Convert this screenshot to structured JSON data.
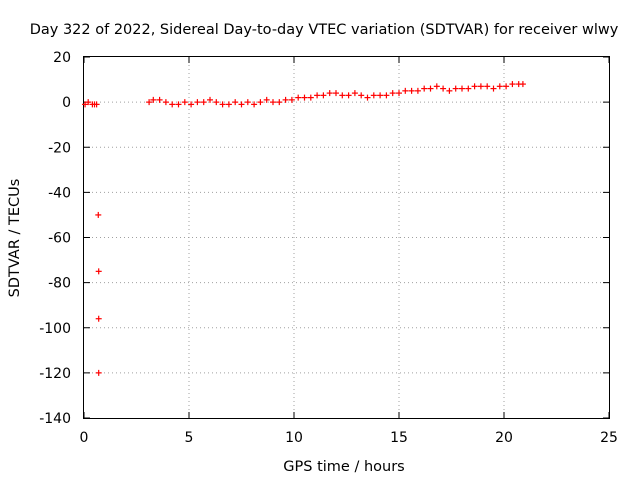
{
  "chart_data": {
    "type": "scatter",
    "title": "Day 322 of 2022, Sidereal Day-to-day VTEC variation (SDTVAR) for receiver wlwy",
    "xlabel": "GPS time / hours",
    "ylabel": "SDTVAR / TECUs",
    "xlim": [
      0,
      25
    ],
    "ylim": [
      -140,
      20
    ],
    "xticks": [
      0,
      5,
      10,
      15,
      20,
      25
    ],
    "yticks": [
      -140,
      -120,
      -100,
      -80,
      -60,
      -40,
      -20,
      0,
      20
    ],
    "grid": true,
    "marker": "+",
    "colors": {
      "series": "#ff0000",
      "grid": "#a0a0a0",
      "axes": "#000000"
    },
    "series": [
      {
        "name": "SDTVAR",
        "x": [
          0.05,
          0.2,
          0.4,
          0.5,
          0.6,
          0.68,
          0.7,
          0.7,
          0.7,
          3.1,
          3.3,
          3.6,
          3.9,
          4.2,
          4.5,
          4.8,
          5.1,
          5.4,
          5.7,
          6.0,
          6.3,
          6.6,
          6.9,
          7.2,
          7.5,
          7.8,
          8.1,
          8.4,
          8.7,
          9.0,
          9.3,
          9.6,
          9.9,
          10.2,
          10.5,
          10.8,
          11.1,
          11.4,
          11.7,
          12.0,
          12.3,
          12.6,
          12.9,
          13.2,
          13.5,
          13.8,
          14.1,
          14.4,
          14.7,
          15.0,
          15.3,
          15.6,
          15.9,
          16.2,
          16.5,
          16.8,
          17.1,
          17.4,
          17.7,
          18.0,
          18.3,
          18.6,
          18.9,
          19.2,
          19.5,
          19.8,
          20.1,
          20.4,
          20.7,
          20.9
        ],
        "y": [
          -1,
          0,
          -1,
          -1,
          -1,
          -50,
          -75,
          -96,
          -120,
          0,
          1,
          1,
          0,
          -1,
          -1,
          0,
          -1,
          0,
          0,
          1,
          0,
          -1,
          -1,
          0,
          -1,
          0,
          -1,
          0,
          1,
          0,
          0,
          1,
          1,
          2,
          2,
          2,
          3,
          3,
          4,
          4,
          3,
          3,
          4,
          3,
          2,
          3,
          3,
          3,
          4,
          4,
          5,
          5,
          5,
          6,
          6,
          7,
          6,
          5,
          6,
          6,
          6,
          7,
          7,
          7,
          6,
          7,
          7,
          8,
          8,
          8
        ]
      }
    ]
  }
}
